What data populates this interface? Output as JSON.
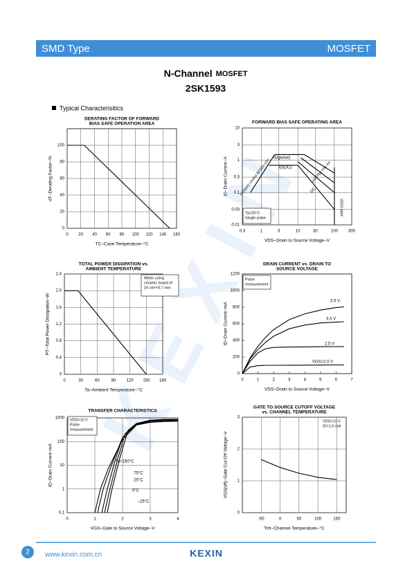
{
  "header": {
    "left": "SMD Type",
    "right": "MOSFET"
  },
  "title": {
    "main": "N-Channel",
    "suffix": "MOSFET",
    "part": "2SK1593"
  },
  "section": "Typical  Characterisitics",
  "watermark": "KEXIN",
  "footer": {
    "page": "2",
    "url": "www.kexin.com.cn",
    "logo": "KEXIN"
  },
  "chart_data": [
    {
      "type": "line",
      "title": [
        "DERATING FACTOR OF FORWARD",
        "BIAS SAFE OPERATION AREA"
      ],
      "xlabel": "TC−Case Temperature−°C",
      "ylabel": "dT−Derating Factor−%",
      "xlim": [
        0,
        160
      ],
      "xticks": [
        0,
        20,
        40,
        60,
        80,
        100,
        120,
        140,
        160
      ],
      "ylim": [
        0,
        120
      ],
      "yticks": [
        0,
        20,
        40,
        60,
        80,
        100
      ],
      "grid": true,
      "series": [
        {
          "color": "#000000",
          "x": [
            0,
            25,
            150
          ],
          "values": [
            100,
            100,
            0
          ]
        }
      ]
    },
    {
      "type": "line",
      "title": [
        "FORWARD BIAS SAFE OPERATING AREA"
      ],
      "xlabel": "VDS−Drain to Source Voltage−V",
      "ylabel": "ID−Drain Current−A",
      "xscale": "log",
      "yscale": "log",
      "xlim": [
        0.3,
        300
      ],
      "xticks": [
        0.3,
        1,
        3,
        10,
        30,
        100,
        300
      ],
      "ylim": [
        0.01,
        10
      ],
      "yticks": [
        0.01,
        0.03,
        0.1,
        0.3,
        1,
        3,
        10
      ],
      "grid": true,
      "annotations": [
        "Ta=25°C",
        "Single pulse"
      ],
      "series": [
        {
          "name": "RDS(on) Limited @VGS=10V",
          "color": "#000000",
          "x": [
            0.5,
            2.3
          ],
          "values": [
            0.1,
            1.5
          ]
        },
        {
          "name": "ID(pulse)",
          "color": "#000000",
          "x": [
            2.3,
            15
          ],
          "values": [
            1.5,
            1.5
          ]
        },
        {
          "name": "ID(DC)",
          "color": "#000000",
          "x": [
            1.6,
            10
          ],
          "values": [
            0.7,
            0.7
          ]
        },
        {
          "name": "1 ms",
          "color": "#000000",
          "x": [
            15,
            100
          ],
          "values": [
            1.5,
            0.4
          ]
        },
        {
          "name": "10 ms",
          "color": "#000000",
          "x": [
            12,
            100
          ],
          "values": [
            1.2,
            0.2
          ]
        },
        {
          "name": "100 ms",
          "color": "#000000",
          "x": [
            10,
            100
          ],
          "values": [
            0.9,
            0.1
          ]
        },
        {
          "name": "DC",
          "color": "#000000",
          "x": [
            10,
            100
          ],
          "values": [
            0.7,
            0.03
          ]
        },
        {
          "name": "VDSS MAX",
          "color": "#000000",
          "x": [
            100,
            100
          ],
          "values": [
            0.01,
            0.6
          ]
        }
      ]
    },
    {
      "type": "line",
      "title": [
        "TOTAL POWER DISSIPATION vs.",
        "AMBIENT TEMPERATURE"
      ],
      "xlabel": "Ta−Ambient Temperature−°C",
      "ylabel": "PT−Total Power Dissipation−W",
      "xlim": [
        0,
        180
      ],
      "xticks": [
        0,
        30,
        60,
        90,
        120,
        150,
        180
      ],
      "ylim": [
        0,
        2.4
      ],
      "yticks": [
        0,
        0.4,
        0.8,
        1.2,
        1.6,
        {
          "value": 2,
          "label": "2.0"
        },
        2.4
      ],
      "grid": true,
      "annotations": [
        "When using",
        "ceramic board of",
        "16 cm²×0.7 mm"
      ],
      "series": [
        {
          "color": "#000000",
          "x": [
            0,
            25,
            150
          ],
          "values": [
            2,
            2,
            0
          ]
        }
      ]
    },
    {
      "type": "line",
      "title": [
        "DRAIN CURRENT vs. DRAIN TO",
        "SOURCE VOLTAGE"
      ],
      "xlabel": "VDS−Drain to Source Voltage−V",
      "ylabel": "ID−Drain Current−mA",
      "xlim": [
        0,
        7
      ],
      "xticks": [
        0,
        1,
        2,
        3,
        4,
        5,
        6,
        7
      ],
      "ylim": [
        0,
        1200
      ],
      "yticks": [
        0,
        200,
        400,
        600,
        800,
        1000,
        1200
      ],
      "grid": false,
      "annotations": [
        "Pulse",
        "measurement"
      ],
      "series": [
        {
          "name": "3.5 V",
          "color": "#000000",
          "x": [
            0,
            0.5,
            1,
            1.5,
            2,
            3,
            4,
            5,
            6,
            6.5
          ],
          "values": [
            0,
            190,
            330,
            440,
            530,
            650,
            720,
            765,
            795,
            805
          ]
        },
        {
          "name": "3.0 V",
          "color": "#000000",
          "x": [
            0,
            0.5,
            1,
            1.5,
            2,
            3,
            4,
            5,
            6,
            6.5
          ],
          "values": [
            0,
            180,
            290,
            380,
            450,
            540,
            585,
            610,
            620,
            625
          ]
        },
        {
          "name": "2.5 V",
          "color": "#000000",
          "x": [
            0,
            0.5,
            1,
            1.5,
            2,
            3,
            4,
            5,
            6,
            6.5
          ],
          "values": [
            0,
            150,
            250,
            300,
            315,
            320,
            322,
            324,
            325,
            326
          ]
        },
        {
          "name": "VGS=2.0 V",
          "color": "#000000",
          "x": [
            0,
            0.5,
            1,
            1.5,
            2,
            3,
            4,
            5,
            6,
            6.5
          ],
          "values": [
            0,
            80,
            95,
            100,
            100,
            101,
            102,
            103,
            104,
            105
          ]
        }
      ]
    },
    {
      "type": "line",
      "title": [
        "TRANSFER CHARACTERISTICS"
      ],
      "xlabel": "VGS−Gate to Source Voltage−V",
      "ylabel": "ID−Drain Current−mA",
      "yscale": "log",
      "xlim": [
        0,
        4
      ],
      "xticks": [
        0,
        1,
        2,
        3,
        4
      ],
      "ylim": [
        0.1,
        1000
      ],
      "yticks": [
        0.1,
        1,
        10,
        100,
        1000
      ],
      "grid": true,
      "annotations": [
        "VDS=10 V",
        "Pulse",
        "measurement"
      ],
      "series": [
        {
          "name": "Ta=150°C",
          "color": "#000000",
          "x": [
            1,
            1.2,
            1.5,
            2,
            2.5,
            3,
            3.5,
            4
          ],
          "values": [
            0.1,
            1,
            8,
            120,
            500,
            650,
            700,
            720
          ]
        },
        {
          "name": "75°C",
          "color": "#000000",
          "x": [
            1.1,
            1.3,
            1.6,
            2,
            2.5,
            3,
            3.5,
            4
          ],
          "values": [
            0.1,
            1,
            10,
            150,
            520,
            700,
            760,
            780
          ]
        },
        {
          "name": "25°C",
          "color": "#000000",
          "x": [
            1.25,
            1.45,
            1.7,
            2,
            2.5,
            3,
            3.5,
            4
          ],
          "values": [
            0.1,
            1,
            12,
            150,
            540,
            750,
            810,
            830
          ]
        },
        {
          "name": "0°C",
          "color": "#000000",
          "x": [
            1.35,
            1.5,
            1.8,
            2.1,
            2.5,
            3,
            3.5,
            4
          ],
          "values": [
            0.1,
            0.6,
            15,
            220,
            560,
            780,
            840,
            850
          ]
        },
        {
          "name": "−25°C",
          "color": "#000000",
          "x": [
            1.45,
            1.6,
            1.9,
            2.2,
            2.5,
            3,
            3.5,
            4
          ],
          "values": [
            0.1,
            0.8,
            20,
            300,
            580,
            800,
            860,
            870
          ]
        }
      ]
    },
    {
      "type": "line",
      "title": [
        "GATE TO SOURCE CUTOFF VOLTAGE",
        "vs. CHANNEL TEMPERATURE"
      ],
      "xlabel": "Tch−Channel Temperature−°C",
      "ylabel": "VGS(off)−Gate Cut-Off Voltage−V",
      "xlim": [
        -100,
        175
      ],
      "xticks": [
        -50,
        0,
        50,
        100,
        150
      ],
      "ylim": [
        0,
        3
      ],
      "yticks": [
        0,
        1,
        2,
        3
      ],
      "grid": true,
      "annotations": [
        "VDS=10 V",
        "ID=1.0 mA"
      ],
      "series": [
        {
          "color": "#000000",
          "x": [
            -50,
            0,
            50,
            100,
            150
          ],
          "values": [
            1.67,
            1.42,
            1.24,
            1.11,
            1.04
          ]
        }
      ]
    }
  ]
}
